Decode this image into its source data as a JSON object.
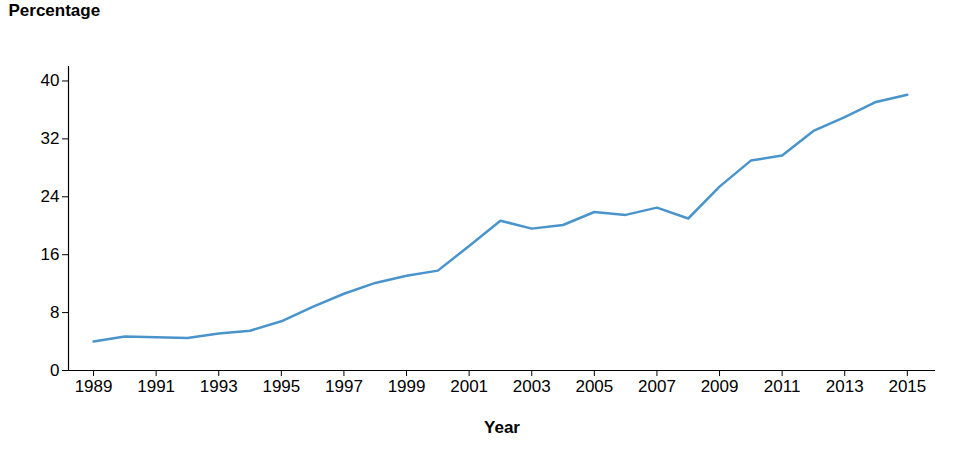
{
  "chart_data": {
    "type": "line",
    "x_label": "Year",
    "y_label": "Percentage",
    "x": [
      1989,
      1990,
      1991,
      1992,
      1993,
      1994,
      1995,
      1996,
      1997,
      1998,
      1999,
      2000,
      2001,
      2002,
      2003,
      2004,
      2005,
      2006,
      2007,
      2008,
      2009,
      2010,
      2011,
      2012,
      2013,
      2014,
      2015
    ],
    "values": [
      4.0,
      4.7,
      4.6,
      4.5,
      5.1,
      5.5,
      6.8,
      8.8,
      10.6,
      12.1,
      13.1,
      13.8,
      17.2,
      20.7,
      19.6,
      20.1,
      21.9,
      21.5,
      22.5,
      21.0,
      25.4,
      29.0,
      29.7,
      33.1,
      35.0,
      37.1,
      38.1
    ],
    "color": "#4a94cc",
    "xlim": [
      1988.2,
      2015.9
    ],
    "xticks": [
      1989,
      1991,
      1993,
      1995,
      1997,
      1999,
      2001,
      2003,
      2005,
      2007,
      2009,
      2011,
      2013,
      2015
    ],
    "ylim": [
      0,
      42
    ],
    "yticks": [
      0,
      8,
      16,
      24,
      32,
      40
    ],
    "grid": false
  }
}
